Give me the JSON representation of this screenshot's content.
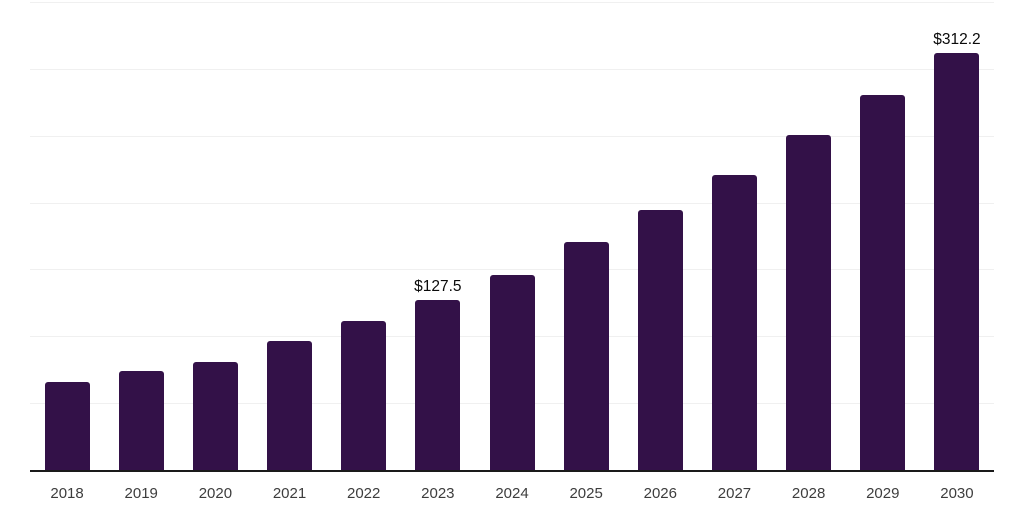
{
  "chart_data": {
    "type": "bar",
    "title": "",
    "xlabel": "",
    "ylabel": "",
    "categories": [
      "2018",
      "2019",
      "2020",
      "2021",
      "2022",
      "2023",
      "2024",
      "2025",
      "2026",
      "2027",
      "2028",
      "2029",
      "2030"
    ],
    "values": [
      65.8,
      74.0,
      80.7,
      96.2,
      111.1,
      127.5,
      146.0,
      170.3,
      194.5,
      221.0,
      250.3,
      280.4,
      312.2
    ],
    "data_labels": [
      "",
      "",
      "",
      "",
      "",
      "$127.5",
      "",
      "",
      "",
      "",
      "",
      "",
      "$312.2"
    ],
    "ylim": [
      0,
      350
    ],
    "gridline_values": [
      50,
      100,
      150,
      200,
      250,
      300,
      350
    ],
    "grid": true,
    "legend_position": "none",
    "colors": {
      "bar": "#331148",
      "gridline": "#f0f0f0",
      "axis_line": "#1a1a1a",
      "tick_label": "#3d3d3d",
      "data_label": "#0a0a0a",
      "background": "#ffffff"
    }
  }
}
